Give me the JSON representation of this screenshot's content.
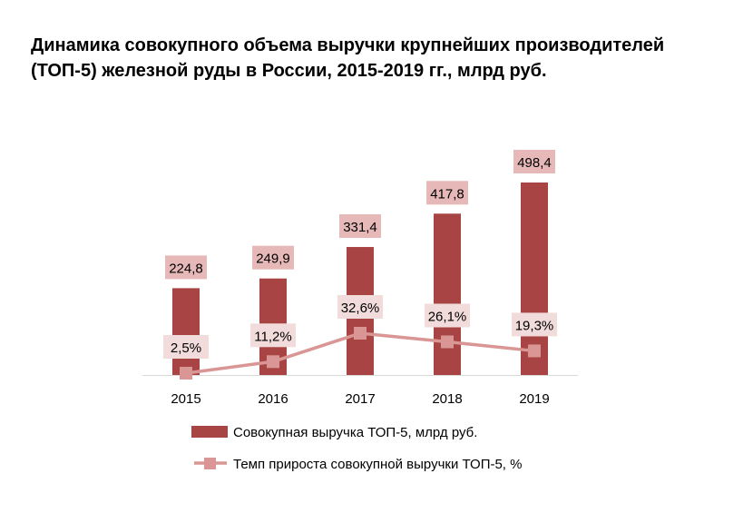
{
  "title": "Динамика совокупного объема выручки крупнейших производителей (ТОП-5) железной руды в России, 2015-2019 гг., млрд руб.",
  "colors": {
    "bar": "#a84544",
    "line": "#d99694",
    "bar_label_bg": "#e6b9b8",
    "line_label_bg": "#f2dcdb",
    "axis": "#d9d9d9",
    "text": "#000000"
  },
  "chart_data": {
    "type": "bar",
    "categories": [
      "2015",
      "2016",
      "2017",
      "2018",
      "2019"
    ],
    "series": [
      {
        "name": "Совокупная выручка ТОП-5, млрд руб.",
        "type": "bar",
        "values": [
          224.8,
          249.9,
          331.4,
          417.8,
          498.4
        ],
        "labels": [
          "224,8",
          "249,9",
          "331,4",
          "417,8",
          "498,4"
        ]
      },
      {
        "name": "Темп прироста совокупной выручки ТОП-5, %",
        "type": "line",
        "values": [
          2.5,
          11.2,
          32.6,
          26.1,
          19.3
        ],
        "labels": [
          "2,5%",
          "11,2%",
          "32,6%",
          "26,1%",
          "19,3%"
        ]
      }
    ],
    "grid": false,
    "legend": "bottom"
  }
}
